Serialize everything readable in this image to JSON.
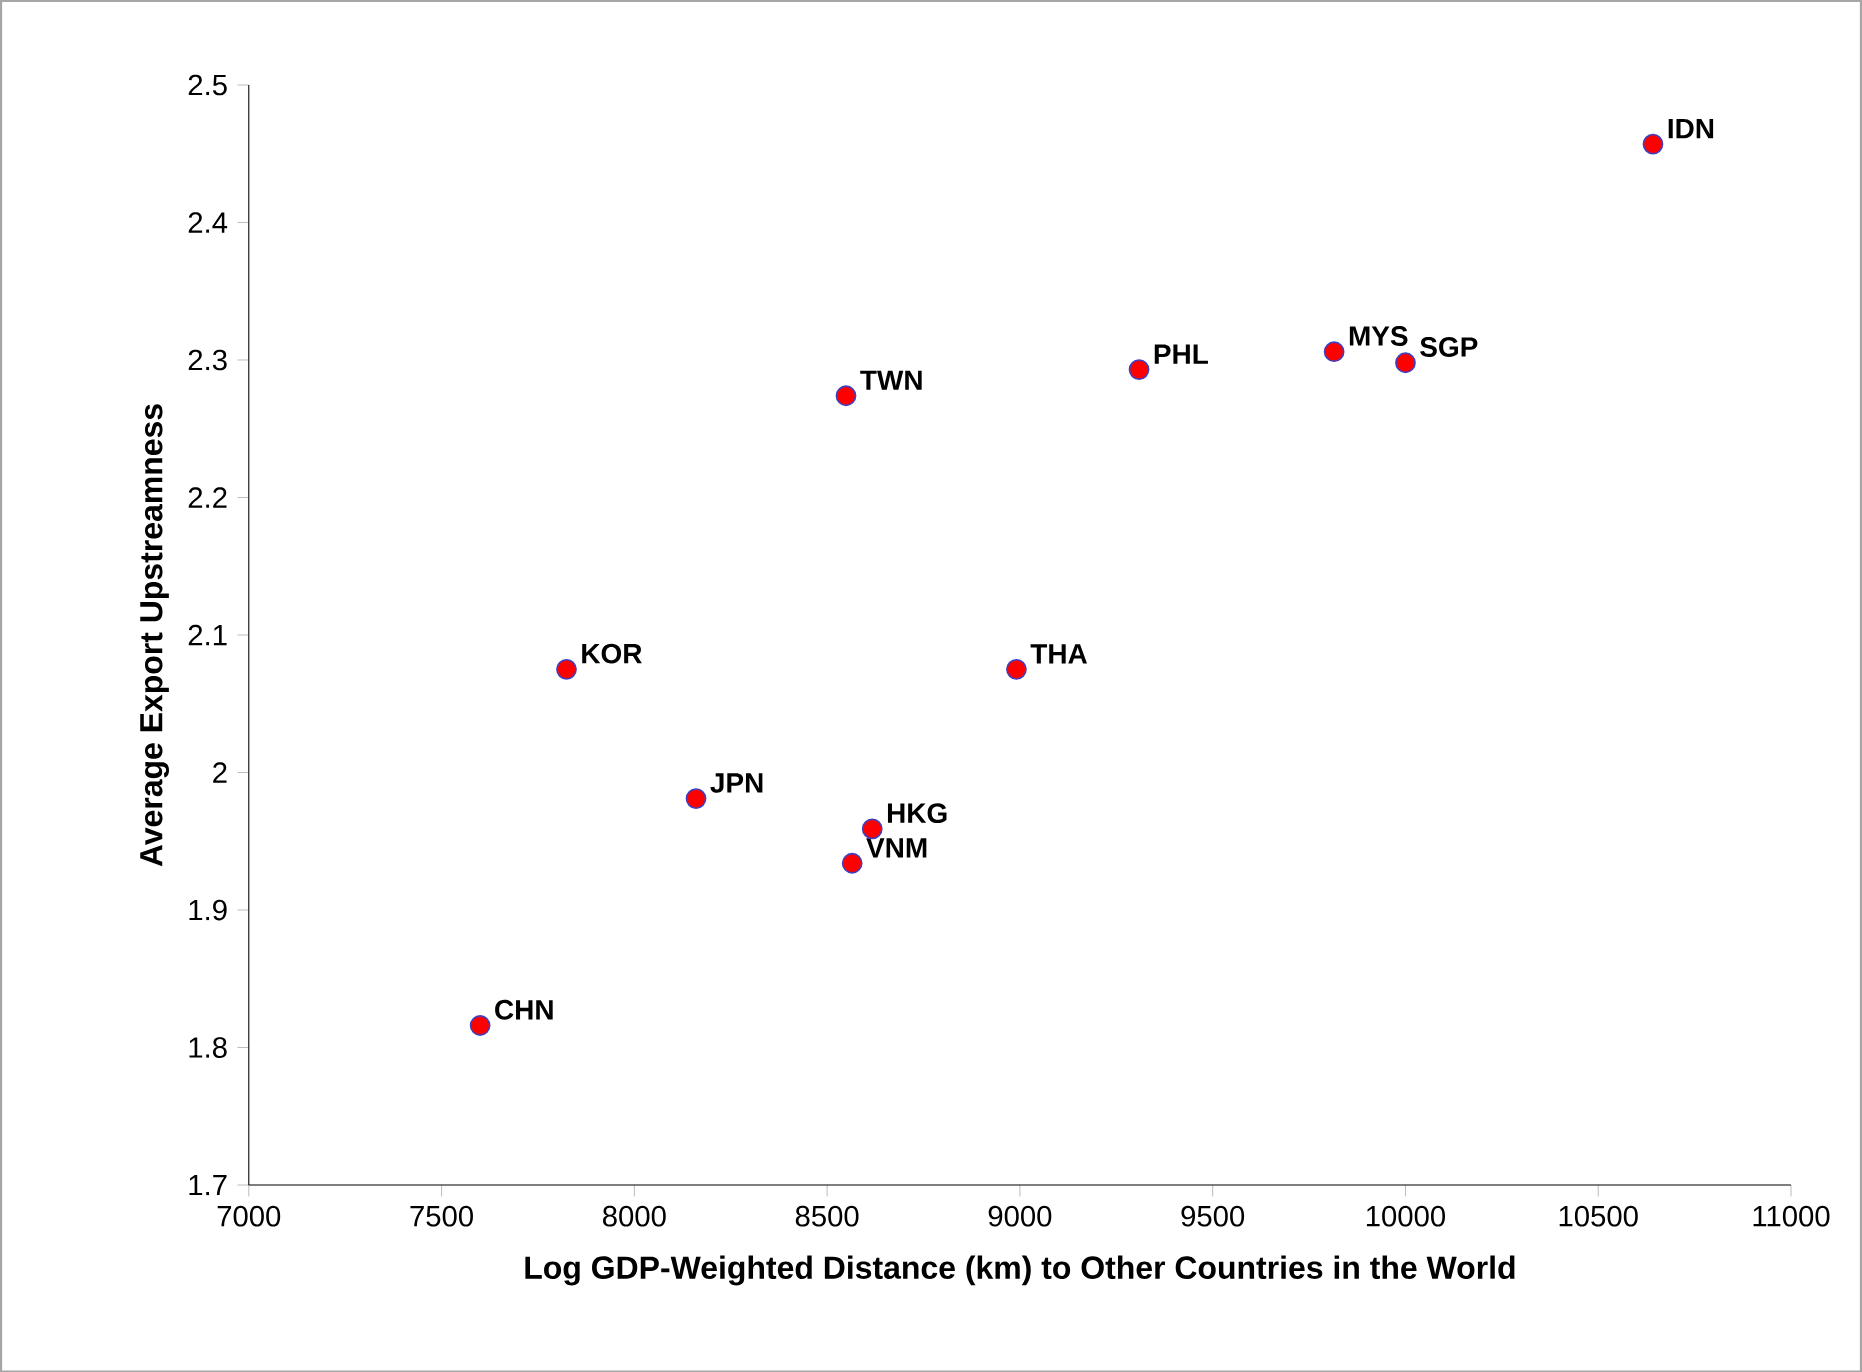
{
  "chart_data": {
    "type": "scatter",
    "xlabel": "Log GDP-Weighted Distance (km) to Other Countries in the World",
    "ylabel": "Average Export Upstreamness",
    "x": [
      7600,
      7824,
      8160,
      8549,
      8617,
      8565,
      8991,
      9309,
      9815,
      10000,
      10642
    ],
    "series": [
      {
        "color": "#ff0000",
        "values": [
          1.816,
          2.075,
          1.981,
          2.274,
          1.959,
          1.934,
          2.075,
          2.293,
          2.306,
          2.298,
          2.457
        ]
      }
    ],
    "grid": false,
    "xlim": [
      7000,
      11000
    ],
    "xticks": [
      7000,
      7500,
      8000,
      8500,
      9000,
      9500,
      10000,
      10500,
      11000
    ],
    "ylim": [
      1.7,
      2.5
    ],
    "yticks": [
      1.7,
      1.8,
      1.9,
      2,
      2.1,
      2.2,
      2.3,
      2.4,
      2.5
    ],
    "annotations": [
      {
        "text": "CHN",
        "x": 7600,
        "y": 1.816
      },
      {
        "text": "KOR",
        "x": 7824,
        "y": 2.075
      },
      {
        "text": "JPN",
        "x": 8160,
        "y": 1.981
      },
      {
        "text": "TWN",
        "x": 8549,
        "y": 2.274
      },
      {
        "text": "HKG",
        "x": 8617,
        "y": 1.959
      },
      {
        "text": "VNM",
        "x": 8565,
        "y": 1.934
      },
      {
        "text": "THA",
        "x": 8991,
        "y": 2.075
      },
      {
        "text": "PHL",
        "x": 9309,
        "y": 2.293
      },
      {
        "text": "MYS",
        "x": 9815,
        "y": 2.306
      },
      {
        "text": "SGP",
        "x": 10000,
        "y": 2.298
      },
      {
        "text": "IDN",
        "x": 10642,
        "y": 2.457
      }
    ]
  }
}
